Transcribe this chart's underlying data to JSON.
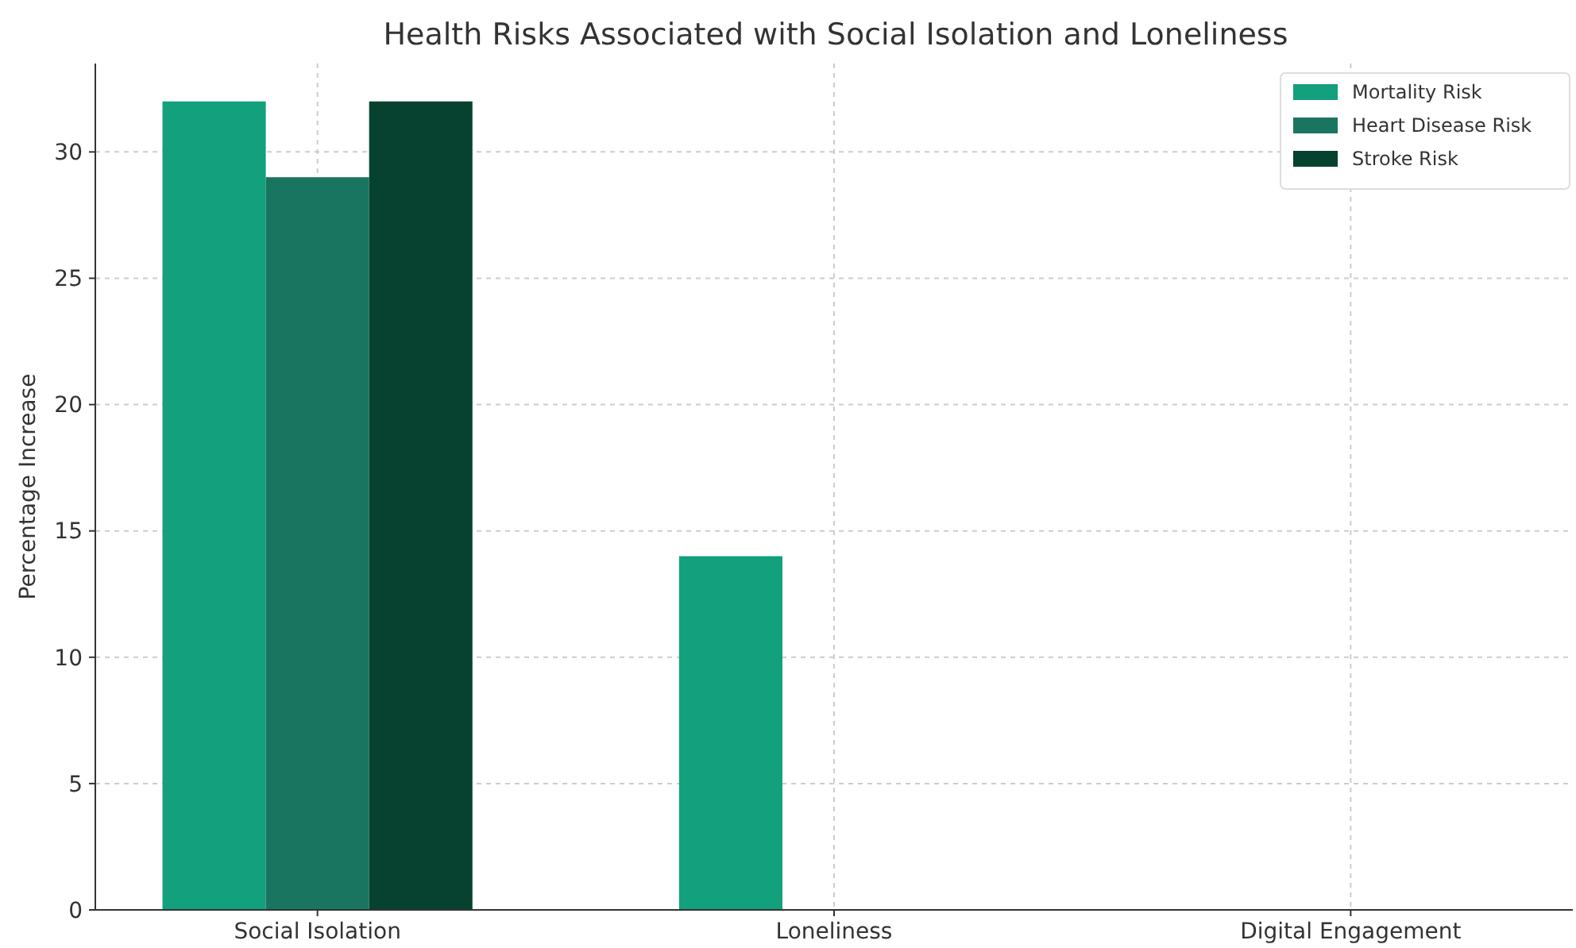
{
  "chart_data": {
    "type": "bar",
    "title": "Health Risks Associated with Social Isolation and Loneliness",
    "ylabel": "Percentage Increase",
    "categories": [
      "Social Isolation",
      "Loneliness",
      "Digital Engagement"
    ],
    "series": [
      {
        "name": "Mortality Risk",
        "color": "#13a07c",
        "values": [
          32,
          14,
          null
        ]
      },
      {
        "name": "Heart Disease Risk",
        "color": "#1a7560",
        "values": [
          29,
          null,
          null
        ]
      },
      {
        "name": "Stroke Risk",
        "color": "#06422f",
        "values": [
          32,
          null,
          null
        ]
      }
    ],
    "ylim": [
      0,
      33.5
    ],
    "yticks": [
      0,
      5,
      10,
      15,
      20,
      25,
      30
    ],
    "grid": true,
    "legend": "top right"
  }
}
